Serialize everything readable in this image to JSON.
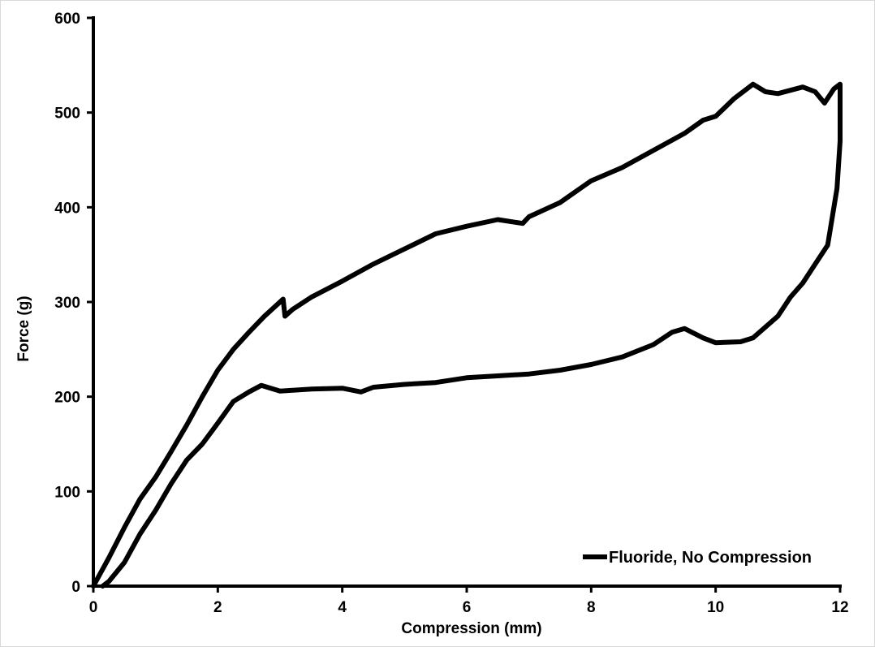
{
  "chart_data": {
    "type": "line",
    "title": "",
    "xlabel": "Compression (mm)",
    "ylabel": "Force (g)",
    "xlim": [
      0,
      12
    ],
    "ylim": [
      0,
      600
    ],
    "x_ticks": [
      "0",
      "2",
      "4",
      "6",
      "8",
      "10",
      "12"
    ],
    "y_ticks": [
      "0",
      "100",
      "200",
      "300",
      "400",
      "500",
      "600"
    ],
    "grid": false,
    "legend_position": "bottom-right",
    "series": [
      {
        "name": "Fluoride, No Compression",
        "color": "#000000",
        "points": [
          [
            0.0,
            0
          ],
          [
            0.25,
            30
          ],
          [
            0.5,
            62
          ],
          [
            0.75,
            92
          ],
          [
            1.0,
            115
          ],
          [
            1.25,
            142
          ],
          [
            1.5,
            170
          ],
          [
            1.75,
            200
          ],
          [
            2.0,
            228
          ],
          [
            2.25,
            250
          ],
          [
            2.5,
            268
          ],
          [
            2.75,
            285
          ],
          [
            3.0,
            300
          ],
          [
            3.05,
            303
          ],
          [
            3.08,
            285
          ],
          [
            3.2,
            292
          ],
          [
            3.5,
            305
          ],
          [
            4.0,
            322
          ],
          [
            4.5,
            340
          ],
          [
            5.0,
            356
          ],
          [
            5.5,
            372
          ],
          [
            6.0,
            380
          ],
          [
            6.5,
            387
          ],
          [
            6.9,
            383
          ],
          [
            7.0,
            390
          ],
          [
            7.5,
            405
          ],
          [
            8.0,
            428
          ],
          [
            8.5,
            442
          ],
          [
            9.0,
            460
          ],
          [
            9.5,
            478
          ],
          [
            9.8,
            492
          ],
          [
            10.0,
            496
          ],
          [
            10.3,
            515
          ],
          [
            10.6,
            530
          ],
          [
            10.8,
            522
          ],
          [
            11.0,
            520
          ],
          [
            11.4,
            527
          ],
          [
            11.6,
            522
          ],
          [
            11.75,
            510
          ],
          [
            11.9,
            525
          ],
          [
            12.0,
            530
          ],
          [
            12.0,
            470
          ],
          [
            11.95,
            420
          ],
          [
            11.8,
            360
          ],
          [
            11.6,
            340
          ],
          [
            11.4,
            320
          ],
          [
            11.2,
            305
          ],
          [
            11.0,
            285
          ],
          [
            10.6,
            262
          ],
          [
            10.4,
            258
          ],
          [
            10.0,
            257
          ],
          [
            9.8,
            262
          ],
          [
            9.5,
            272
          ],
          [
            9.3,
            268
          ],
          [
            9.0,
            255
          ],
          [
            8.5,
            242
          ],
          [
            8.0,
            234
          ],
          [
            7.5,
            228
          ],
          [
            7.0,
            224
          ],
          [
            6.5,
            222
          ],
          [
            6.0,
            220
          ],
          [
            5.5,
            215
          ],
          [
            5.0,
            213
          ],
          [
            4.5,
            210
          ],
          [
            4.3,
            205
          ],
          [
            4.0,
            209
          ],
          [
            3.5,
            208
          ],
          [
            3.0,
            206
          ],
          [
            2.7,
            212
          ],
          [
            2.5,
            205
          ],
          [
            2.25,
            195
          ],
          [
            2.0,
            172
          ],
          [
            1.75,
            150
          ],
          [
            1.5,
            133
          ],
          [
            1.25,
            108
          ],
          [
            1.0,
            80
          ],
          [
            0.75,
            55
          ],
          [
            0.5,
            25
          ],
          [
            0.25,
            5
          ],
          [
            0.15,
            0
          ]
        ]
      }
    ]
  }
}
